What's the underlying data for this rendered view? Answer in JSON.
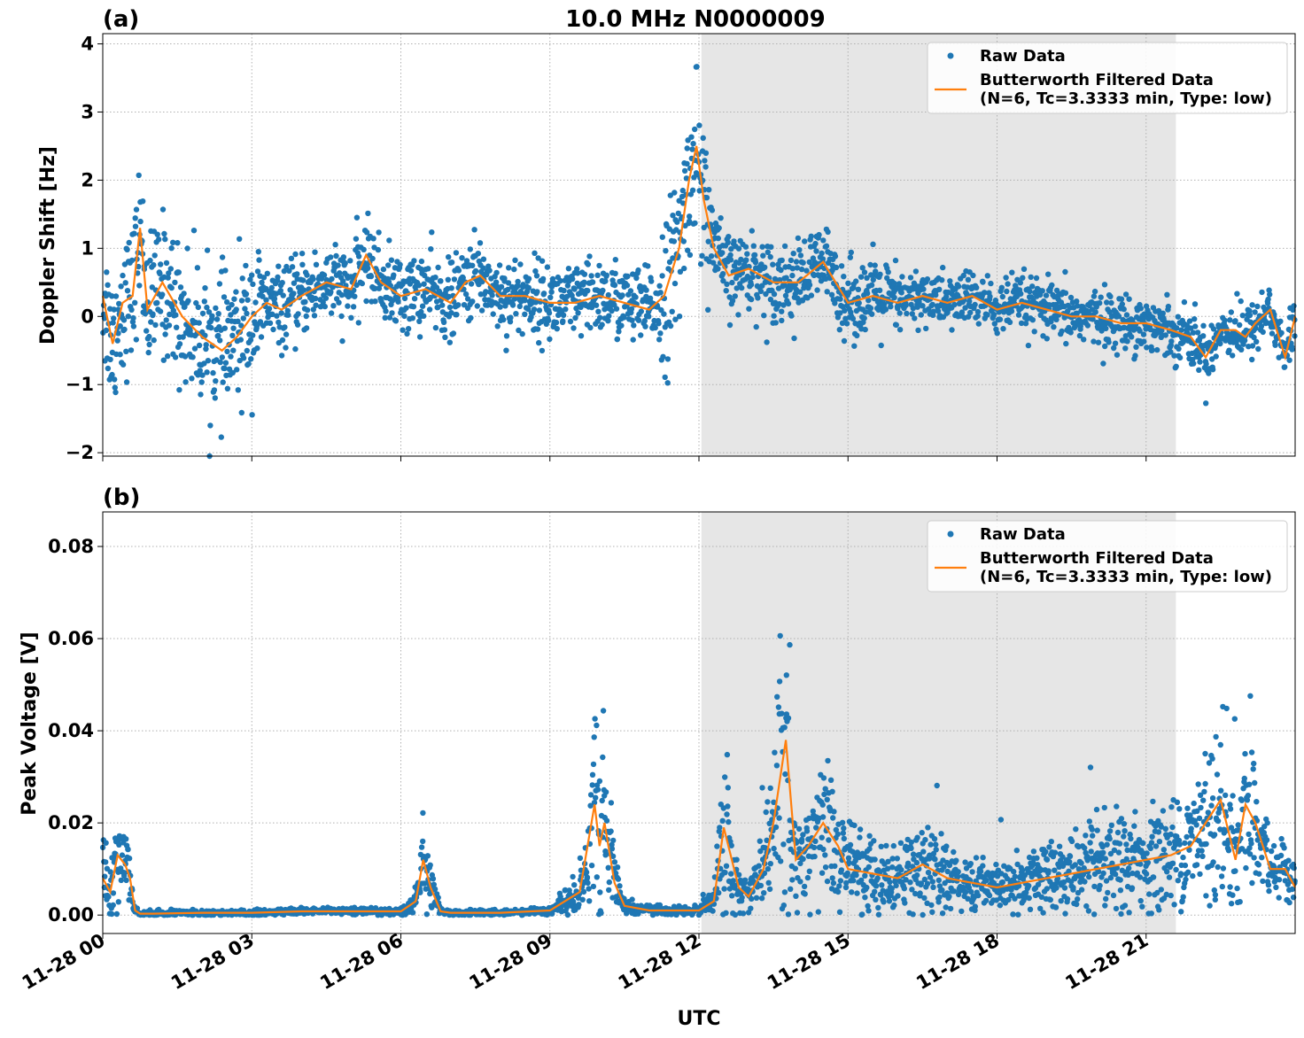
{
  "figure_title": "10.0 MHz N0000009",
  "colors": {
    "raw": "#1f77b4",
    "filtered": "#ff7f0e",
    "shade": "#e6e6e6",
    "grid": "#b0b0b0"
  },
  "x_axis": {
    "label": "UTC",
    "tick_labels": [
      "11-28 00",
      "11-28 03",
      "11-28 06",
      "11-28 09",
      "11-28 12",
      "11-28 15",
      "11-28 18",
      "11-28 21"
    ],
    "range_hours": [
      0,
      24
    ],
    "shaded_span_hours": [
      12.05,
      21.6
    ]
  },
  "legend": {
    "raw_label": "Raw Data",
    "filtered_label_line1": "Butterworth Filtered Data",
    "filtered_label_line2": "(N=6, Tc=3.3333 min, Type: low)"
  },
  "chart_data": [
    {
      "type": "scatter",
      "panel": "(a)",
      "ylabel": "Doppler Shift [Hz]",
      "ylim": [
        -2.05,
        4.15
      ],
      "yticks": [
        -2,
        -1,
        0,
        1,
        2,
        3,
        4
      ],
      "ytick_labels": [
        "−2",
        "−1",
        "0",
        "1",
        "2",
        "3",
        "4"
      ],
      "grid": true,
      "legend_position": "top-right",
      "series": [
        {
          "name": "Butterworth Filtered Data",
          "x": [
            0,
            0.2,
            0.4,
            0.6,
            0.75,
            0.9,
            1.2,
            1.6,
            2.0,
            2.4,
            2.7,
            3.0,
            3.3,
            3.6,
            4.0,
            4.5,
            5.0,
            5.3,
            5.6,
            6.0,
            6.5,
            7.0,
            7.3,
            7.6,
            8.0,
            8.5,
            9.0,
            9.5,
            10.0,
            10.5,
            11.0,
            11.3,
            11.6,
            11.8,
            11.95,
            12.1,
            12.3,
            12.6,
            13.0,
            13.5,
            14.0,
            14.5,
            15.0,
            15.5,
            16.0,
            16.5,
            17.0,
            17.5,
            18.0,
            18.5,
            19.0,
            19.5,
            20.0,
            20.5,
            21.0,
            21.5,
            21.9,
            22.2,
            22.5,
            22.8,
            23.0,
            23.2,
            23.5,
            23.8,
            24.0
          ],
          "y": [
            0.3,
            -0.4,
            0.2,
            0.3,
            1.3,
            0.1,
            0.5,
            0.0,
            -0.3,
            -0.5,
            -0.3,
            0.0,
            0.2,
            0.1,
            0.3,
            0.5,
            0.4,
            0.9,
            0.5,
            0.3,
            0.4,
            0.2,
            0.5,
            0.6,
            0.3,
            0.3,
            0.2,
            0.2,
            0.3,
            0.2,
            0.1,
            0.3,
            1.0,
            2.0,
            2.5,
            1.7,
            1.0,
            0.6,
            0.7,
            0.5,
            0.5,
            0.8,
            0.2,
            0.3,
            0.2,
            0.3,
            0.2,
            0.3,
            0.1,
            0.2,
            0.1,
            0.0,
            0.0,
            -0.1,
            -0.1,
            -0.2,
            -0.3,
            -0.6,
            -0.2,
            -0.2,
            -0.3,
            -0.1,
            0.1,
            -0.6,
            0.0
          ]
        }
      ]
    },
    {
      "type": "scatter",
      "panel": "(b)",
      "ylabel": "Peak Voltage [V]",
      "ylim": [
        -0.004,
        0.0875
      ],
      "yticks": [
        0.0,
        0.02,
        0.04,
        0.06,
        0.08
      ],
      "ytick_labels": [
        "0.00",
        "0.02",
        "0.04",
        "0.06",
        "0.08"
      ],
      "grid": true,
      "legend_position": "top-right",
      "series": [
        {
          "name": "Butterworth Filtered Data",
          "x": [
            0,
            0.15,
            0.3,
            0.45,
            0.55,
            0.65,
            0.75,
            1.0,
            2.0,
            3.0,
            4.0,
            5.0,
            6.0,
            6.3,
            6.45,
            6.6,
            6.8,
            7.0,
            8.0,
            9.0,
            9.6,
            9.9,
            10.0,
            10.1,
            10.3,
            10.5,
            11.0,
            11.5,
            12.0,
            12.3,
            12.5,
            12.8,
            13.0,
            13.3,
            13.5,
            13.75,
            13.95,
            14.2,
            14.5,
            14.8,
            15.0,
            15.5,
            16.0,
            16.5,
            17.0,
            17.5,
            18.0,
            18.5,
            19.0,
            19.5,
            20.0,
            20.5,
            21.0,
            21.5,
            21.9,
            22.2,
            22.5,
            22.8,
            23.0,
            23.2,
            23.5,
            23.8,
            24.0
          ],
          "y": [
            0.008,
            0.005,
            0.013,
            0.011,
            0.008,
            0.001,
            0.0003,
            0.0003,
            0.0005,
            0.0005,
            0.0008,
            0.0008,
            0.0008,
            0.003,
            0.012,
            0.006,
            0.0008,
            0.0005,
            0.0005,
            0.001,
            0.005,
            0.024,
            0.015,
            0.02,
            0.007,
            0.002,
            0.001,
            0.001,
            0.001,
            0.003,
            0.019,
            0.006,
            0.004,
            0.01,
            0.02,
            0.038,
            0.012,
            0.015,
            0.02,
            0.015,
            0.01,
            0.009,
            0.008,
            0.011,
            0.008,
            0.007,
            0.006,
            0.007,
            0.008,
            0.009,
            0.01,
            0.011,
            0.012,
            0.013,
            0.015,
            0.02,
            0.025,
            0.012,
            0.024,
            0.02,
            0.01,
            0.01,
            0.006
          ]
        }
      ]
    }
  ]
}
